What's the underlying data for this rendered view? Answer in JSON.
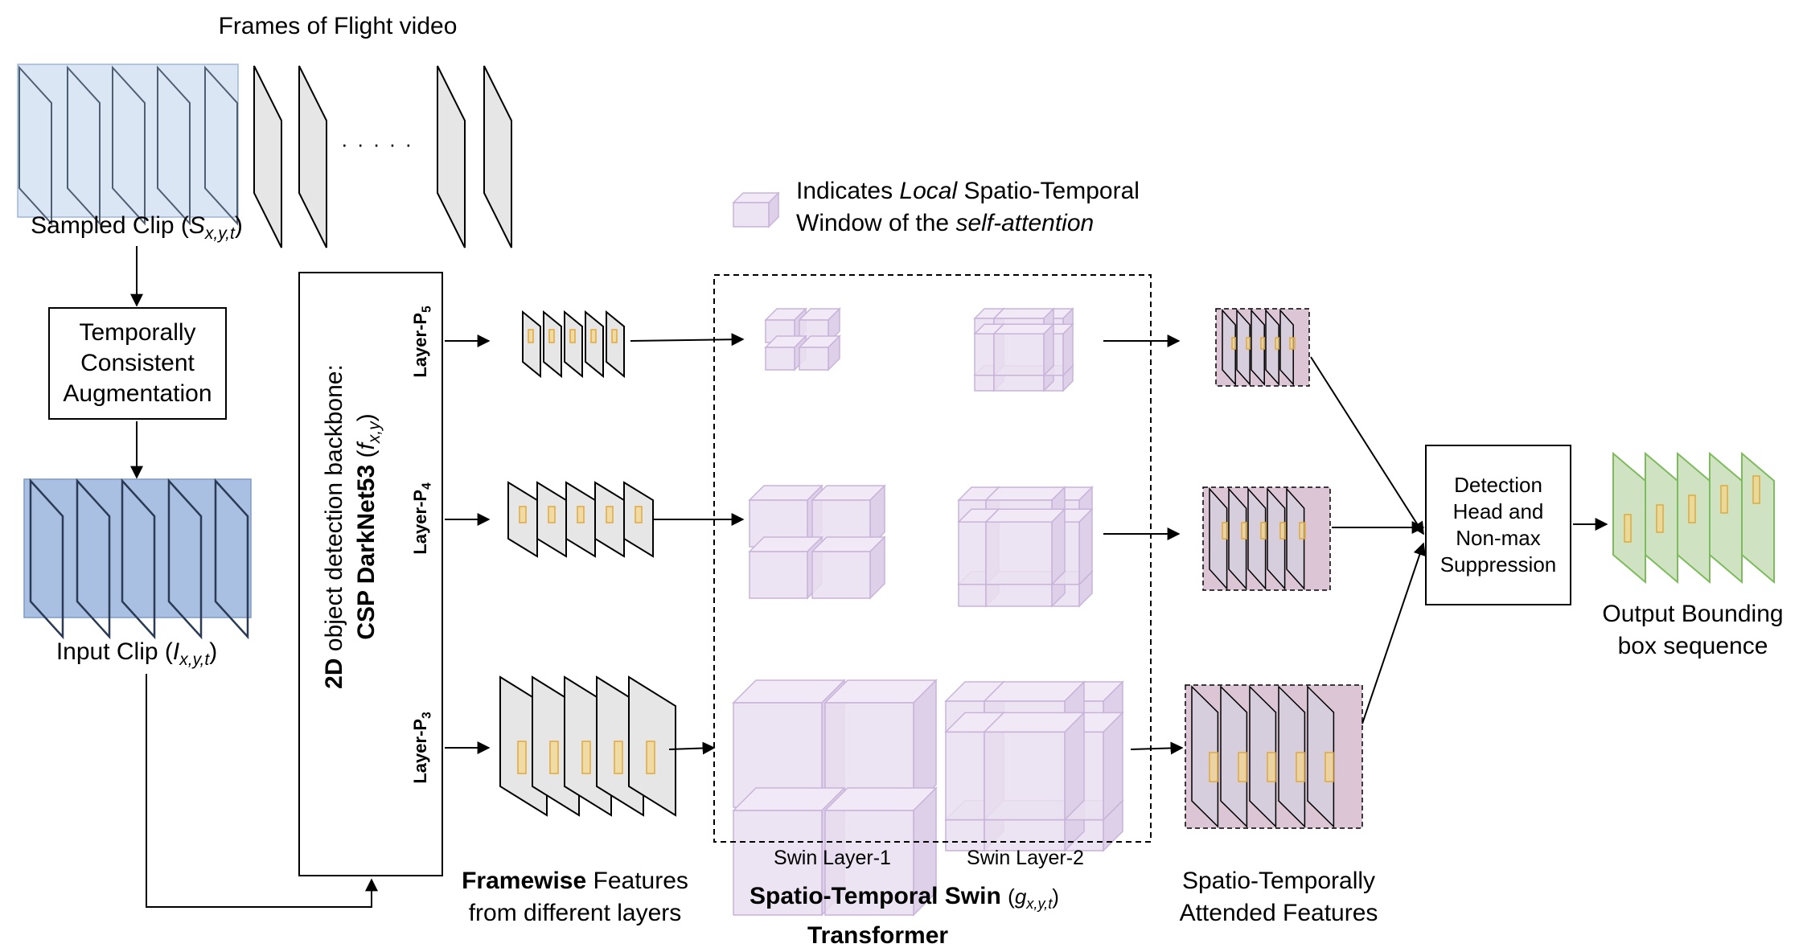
{
  "frames_title": "Frames of Flight video",
  "ellipsis": "· · · · ·",
  "sampled_clip": {
    "label": "Sampled Clip (",
    "sym": "S",
    "sub": "x,y,t",
    "close": ")"
  },
  "augmentation_box": {
    "line1": "Temporally",
    "line2": "Consistent",
    "line3": "Augmentation"
  },
  "input_clip": {
    "label": "Input Clip (",
    "sym": "I",
    "sub": "x,y,t",
    "close": ")"
  },
  "backbone": {
    "line1_bold": "2D",
    "line1_rest": " object detection backbone:",
    "line2_bold": "CSP DarkNet53",
    "line2_sym_open": " (",
    "sym": "f",
    "sub": "x,y",
    "close": ")"
  },
  "layers": {
    "p5": {
      "text": "Layer-P",
      "sub": "5"
    },
    "p4": {
      "text": "Layer-P",
      "sub": "4"
    },
    "p3": {
      "text": "Layer-P",
      "sub": "3"
    }
  },
  "legend": {
    "part1": "Indicates ",
    "italic1": "Local",
    "part2": " Spatio-Temporal",
    "part3": "Window of the ",
    "italic2": "self-attention"
  },
  "swin": {
    "layer1": "Swin Layer-1",
    "layer2": "Swin Layer-2"
  },
  "framewise_caption": {
    "bold": "Framewise",
    "rest": " Features",
    "line2": "from different layers"
  },
  "swin_caption": {
    "bold1": "Spatio-Temporal Swin",
    "bold2": "Transformer",
    "sym": "g",
    "sub": "x,y,t"
  },
  "attended_caption": {
    "line1": "Spatio-Temporally",
    "line2": "Attended Features"
  },
  "detection_box": {
    "line1": "Detection",
    "line2": "Head and",
    "line3": "Non-max",
    "line4": "Suppression"
  },
  "output_caption": {
    "line1": "Output Bounding",
    "line2": "box sequence"
  },
  "colors": {
    "blue_fill": "#a9c0e2",
    "blue_light": "#dbe6f4",
    "purple_fill": "#e9dff0",
    "purple_stroke": "#c9b3da",
    "pink_fill": "#dcc6d6",
    "green_fill": "#cfe3c3",
    "green_stroke": "#7dbb5d",
    "yellow_box": "#f4d58a",
    "frame_gray": "#e6e6e6"
  }
}
